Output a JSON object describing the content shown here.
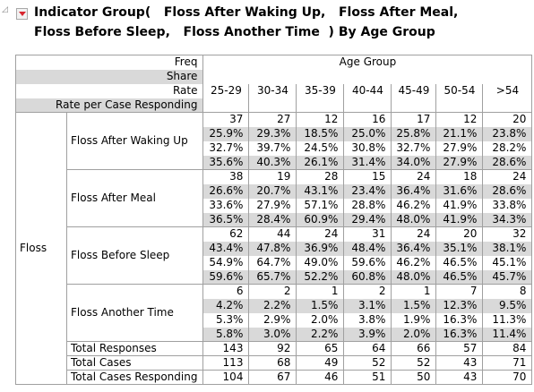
{
  "title_line1": "Indicator Group(   Floss After Waking Up,   Floss After Meal,",
  "title_line2": "Floss Before Sleep,   Floss Another Time  ) By Age Group",
  "stat_labels": [
    "Freq",
    "Share",
    "Rate",
    "Rate per Case Responding"
  ],
  "col_group_label": "Age Group",
  "columns": [
    "25-29",
    "30-34",
    "35-39",
    "40-44",
    "45-49",
    "50-54",
    ">54"
  ],
  "row_group_label": "Floss",
  "rows": [
    {
      "label": "Floss After Waking Up",
      "freq": [
        "37",
        "27",
        "12",
        "16",
        "17",
        "12",
        "20"
      ],
      "share": [
        "25.9%",
        "29.3%",
        "18.5%",
        "25.0%",
        "25.8%",
        "21.1%",
        "23.8%"
      ],
      "rate": [
        "32.7%",
        "39.7%",
        "24.5%",
        "30.8%",
        "32.7%",
        "27.9%",
        "28.2%"
      ],
      "rpcr": [
        "35.6%",
        "40.3%",
        "26.1%",
        "31.4%",
        "34.0%",
        "27.9%",
        "28.6%"
      ]
    },
    {
      "label": "Floss After Meal",
      "freq": [
        "38",
        "19",
        "28",
        "15",
        "24",
        "18",
        "24"
      ],
      "share": [
        "26.6%",
        "20.7%",
        "43.1%",
        "23.4%",
        "36.4%",
        "31.6%",
        "28.6%"
      ],
      "rate": [
        "33.6%",
        "27.9%",
        "57.1%",
        "28.8%",
        "46.2%",
        "41.9%",
        "33.8%"
      ],
      "rpcr": [
        "36.5%",
        "28.4%",
        "60.9%",
        "29.4%",
        "48.0%",
        "41.9%",
        "34.3%"
      ]
    },
    {
      "label": "Floss Before Sleep",
      "freq": [
        "62",
        "44",
        "24",
        "31",
        "24",
        "20",
        "32"
      ],
      "share": [
        "43.4%",
        "47.8%",
        "36.9%",
        "48.4%",
        "36.4%",
        "35.1%",
        "38.1%"
      ],
      "rate": [
        "54.9%",
        "64.7%",
        "49.0%",
        "59.6%",
        "46.2%",
        "46.5%",
        "45.1%"
      ],
      "rpcr": [
        "59.6%",
        "65.7%",
        "52.2%",
        "60.8%",
        "48.0%",
        "46.5%",
        "45.7%"
      ]
    },
    {
      "label": "Floss Another Time",
      "freq": [
        "6",
        "2",
        "1",
        "2",
        "1",
        "7",
        "8"
      ],
      "share": [
        "4.2%",
        "2.2%",
        "1.5%",
        "3.1%",
        "1.5%",
        "12.3%",
        "9.5%"
      ],
      "rate": [
        "5.3%",
        "2.9%",
        "2.0%",
        "3.8%",
        "1.9%",
        "16.3%",
        "11.3%"
      ],
      "rpcr": [
        "5.8%",
        "3.0%",
        "2.2%",
        "3.9%",
        "2.0%",
        "16.3%",
        "11.4%"
      ]
    }
  ],
  "totals": [
    {
      "label": "Total Responses",
      "values": [
        "143",
        "92",
        "65",
        "64",
        "66",
        "57",
        "84"
      ]
    },
    {
      "label": "Total Cases",
      "values": [
        "113",
        "68",
        "49",
        "52",
        "52",
        "43",
        "71"
      ]
    },
    {
      "label": "Total Cases Responding",
      "values": [
        "104",
        "67",
        "46",
        "51",
        "50",
        "43",
        "70"
      ]
    }
  ]
}
